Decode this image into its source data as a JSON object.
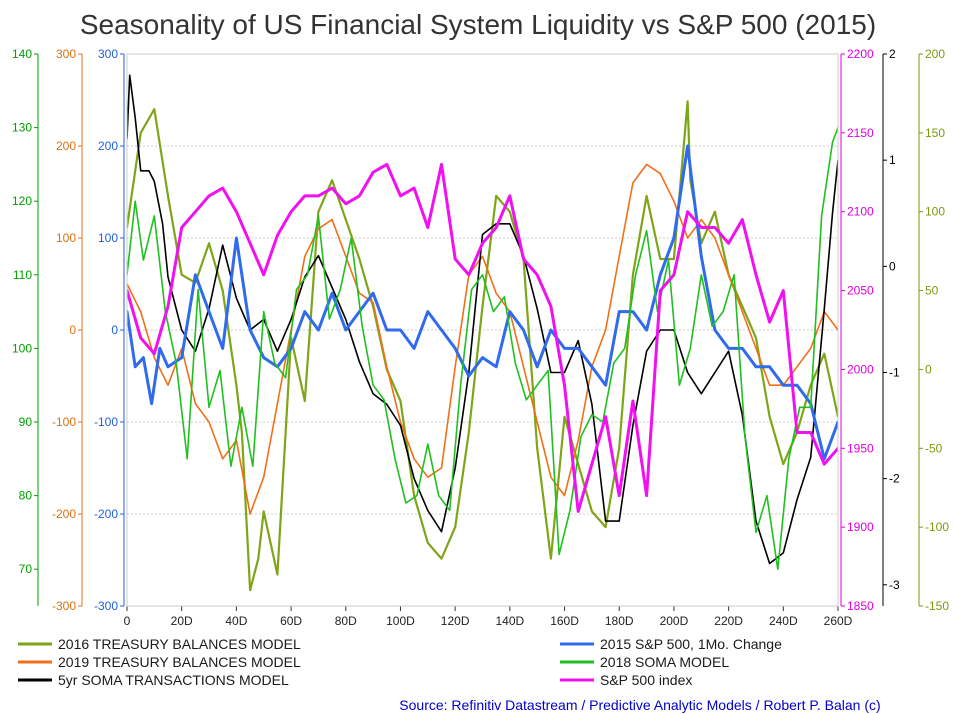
{
  "chart_data": {
    "type": "line",
    "title": "Seasonality of US Financial System Liquidity vs S&P 500 (2015)",
    "source": "Source: Refinitiv Datastream / Predictive Analytic Models / Robert P. Balan (c)",
    "source_color": "#0000cc",
    "grid": true,
    "legend_position": "bottom",
    "x_axis": {
      "range": [
        0,
        260
      ],
      "ticks": [
        "0",
        "20D",
        "40D",
        "60D",
        "80D",
        "100D",
        "120D",
        "140D",
        "160D",
        "180D",
        "200D",
        "220D",
        "240D",
        "260D"
      ]
    },
    "axes": {
      "green_left": {
        "color": "#00a000",
        "range": [
          65,
          140
        ],
        "ticks": [
          "70",
          "80",
          "90",
          "100",
          "110",
          "120",
          "130",
          "140"
        ]
      },
      "orange_left": {
        "color": "#e07010",
        "range": [
          -300,
          300
        ],
        "ticks": [
          "-300",
          "-200",
          "-100",
          "0",
          "100",
          "200",
          "300"
        ]
      },
      "blue_left": {
        "color": "#2060e0",
        "range": [
          -300,
          300
        ],
        "ticks": [
          "-300",
          "-200",
          "-100",
          "0",
          "100",
          "200",
          "300"
        ]
      },
      "magenta_right": {
        "color": "#e000e0",
        "range": [
          1850,
          2200
        ],
        "ticks": [
          "1850",
          "1900",
          "1950",
          "2000",
          "2050",
          "2100",
          "2150",
          "2200"
        ]
      },
      "black_right": {
        "color": "#000000",
        "range": [
          -3.2,
          2.0
        ],
        "ticks": [
          "-3",
          "-2",
          "-1",
          "0",
          "1",
          "2"
        ]
      },
      "olive_right": {
        "color": "#7a9a10",
        "range": [
          -150,
          200
        ],
        "ticks": [
          "-150",
          "-100",
          "-50",
          "0",
          "50",
          "100",
          "150",
          "200"
        ]
      }
    },
    "series": [
      {
        "name": "2016 TREASURY BALANCES MODEL",
        "axis": "olive_right",
        "color": "#7fa418",
        "width": 2.2,
        "x": [
          0,
          5,
          10,
          15,
          20,
          25,
          30,
          35,
          40,
          42,
          45,
          48,
          50,
          55,
          60,
          65,
          70,
          75,
          80,
          85,
          90,
          95,
          100,
          105,
          110,
          115,
          120,
          125,
          130,
          135,
          140,
          145,
          150,
          155,
          160,
          165,
          170,
          175,
          180,
          185,
          190,
          195,
          200,
          205,
          206,
          210,
          215,
          220,
          225,
          230,
          235,
          240,
          245,
          250,
          255,
          260
        ],
        "y": [
          90,
          150,
          165,
          110,
          60,
          55,
          80,
          50,
          -10,
          -40,
          -140,
          -120,
          -90,
          -130,
          20,
          -20,
          100,
          120,
          95,
          70,
          40,
          0,
          -20,
          -80,
          -110,
          -120,
          -100,
          -40,
          40,
          110,
          100,
          70,
          -50,
          -120,
          -30,
          -60,
          -90,
          -100,
          -50,
          60,
          110,
          70,
          70,
          170,
          120,
          80,
          100,
          60,
          40,
          20,
          -30,
          -60,
          -40,
          -10,
          10,
          -30
        ]
      },
      {
        "name": "2019 TREASURY BALANCES MODEL",
        "axis": "orange_left",
        "color": "#f07018",
        "width": 1.6,
        "x": [
          0,
          5,
          10,
          15,
          20,
          25,
          30,
          35,
          40,
          45,
          50,
          55,
          60,
          65,
          70,
          75,
          80,
          85,
          90,
          95,
          100,
          105,
          110,
          115,
          120,
          125,
          130,
          135,
          140,
          145,
          150,
          155,
          160,
          165,
          170,
          175,
          180,
          185,
          190,
          195,
          200,
          205,
          210,
          215,
          220,
          225,
          230,
          235,
          240,
          245,
          250,
          255,
          260
        ],
        "y": [
          50,
          20,
          -30,
          -60,
          -20,
          -80,
          -100,
          -140,
          -120,
          -200,
          -160,
          -80,
          0,
          80,
          110,
          120,
          80,
          40,
          30,
          -40,
          -100,
          -140,
          -160,
          -150,
          -40,
          60,
          80,
          40,
          20,
          -40,
          -100,
          -160,
          -180,
          -120,
          -40,
          0,
          80,
          160,
          180,
          170,
          140,
          100,
          120,
          100,
          60,
          20,
          -20,
          -60,
          -60,
          -40,
          -20,
          20,
          0
        ]
      },
      {
        "name": "5yr SOMA TRANSACTIONS MODEL",
        "axis": "black_right",
        "color": "#000000",
        "width": 1.6,
        "x": [
          0,
          1,
          3,
          5,
          8,
          10,
          13,
          15,
          18,
          20,
          25,
          30,
          35,
          40,
          45,
          50,
          55,
          60,
          65,
          70,
          75,
          80,
          85,
          90,
          95,
          100,
          105,
          110,
          115,
          120,
          125,
          130,
          135,
          140,
          145,
          150,
          155,
          160,
          165,
          170,
          175,
          180,
          185,
          190,
          195,
          200,
          205,
          210,
          215,
          220,
          225,
          230,
          235,
          240,
          245,
          250,
          255,
          258,
          260
        ],
        "y": [
          1.2,
          1.8,
          1.4,
          0.9,
          0.9,
          0.8,
          0.4,
          -0.1,
          -0.4,
          -0.6,
          -0.8,
          -0.4,
          0.2,
          -0.3,
          -0.6,
          -0.5,
          -0.8,
          -0.5,
          -0.1,
          0.1,
          -0.2,
          -0.5,
          -0.9,
          -1.2,
          -1.3,
          -1.5,
          -2.0,
          -2.3,
          -2.5,
          -1.9,
          -1.0,
          0.3,
          0.4,
          0.4,
          0.1,
          -0.4,
          -1.0,
          -1.0,
          -0.7,
          -1.3,
          -2.4,
          -2.4,
          -1.5,
          -0.8,
          -0.6,
          -0.6,
          -1.0,
          -1.2,
          -1.0,
          -0.8,
          -1.4,
          -2.4,
          -2.8,
          -2.7,
          -2.2,
          -1.8,
          -0.4,
          0.5,
          1.0
        ]
      },
      {
        "name": "2015 S&P 500, 1Mo. Change",
        "axis": "blue_left",
        "color": "#2f6bec",
        "width": 3,
        "x": [
          0,
          3,
          6,
          9,
          12,
          15,
          20,
          25,
          30,
          35,
          40,
          45,
          50,
          55,
          60,
          65,
          70,
          75,
          80,
          85,
          90,
          95,
          100,
          105,
          110,
          115,
          120,
          125,
          130,
          135,
          140,
          145,
          150,
          155,
          160,
          165,
          170,
          175,
          180,
          185,
          190,
          195,
          200,
          205,
          210,
          215,
          220,
          225,
          230,
          235,
          240,
          245,
          250,
          255,
          260
        ],
        "y": [
          20,
          -40,
          -30,
          -80,
          -20,
          -40,
          -30,
          60,
          20,
          -20,
          100,
          0,
          -30,
          -40,
          -20,
          20,
          0,
          40,
          0,
          20,
          40,
          0,
          0,
          -20,
          20,
          0,
          -20,
          -50,
          -30,
          -40,
          20,
          0,
          -40,
          0,
          -20,
          -20,
          -40,
          -60,
          20,
          20,
          0,
          60,
          100,
          200,
          80,
          0,
          -20,
          -20,
          -40,
          -40,
          -60,
          -60,
          -80,
          -140,
          -100
        ]
      },
      {
        "name": "2018 SOMA MODEL",
        "axis": "green_left",
        "color": "#20c020",
        "width": 1.6,
        "x": [
          0,
          3,
          6,
          10,
          14,
          18,
          22,
          26,
          30,
          34,
          38,
          42,
          46,
          50,
          54,
          58,
          62,
          66,
          70,
          74,
          78,
          82,
          86,
          90,
          94,
          98,
          102,
          106,
          110,
          114,
          118,
          122,
          126,
          130,
          134,
          138,
          142,
          146,
          150,
          154,
          158,
          162,
          166,
          170,
          174,
          178,
          182,
          186,
          190,
          194,
          198,
          202,
          206,
          210,
          214,
          218,
          222,
          226,
          230,
          234,
          238,
          242,
          246,
          250,
          254,
          258,
          260
        ],
        "y": [
          110,
          120,
          112,
          118,
          105,
          98,
          85,
          108,
          92,
          97,
          84,
          92,
          84,
          105,
          98,
          96,
          108,
          110,
          118,
          104,
          108,
          115,
          103,
          95,
          93,
          85,
          79,
          80,
          87,
          80,
          78,
          95,
          108,
          110,
          105,
          107,
          98,
          93,
          95,
          97,
          72,
          78,
          88,
          91,
          90,
          98,
          100,
          110,
          116,
          105,
          112,
          95,
          100,
          110,
          103,
          105,
          110,
          88,
          75,
          80,
          70,
          85,
          92,
          92,
          118,
          128,
          130
        ]
      },
      {
        "name": "S&P 500 index",
        "axis": "magenta_right",
        "color": "#f010f0",
        "width": 3,
        "x": [
          0,
          5,
          10,
          15,
          20,
          25,
          30,
          35,
          40,
          45,
          50,
          55,
          60,
          65,
          70,
          75,
          80,
          85,
          90,
          95,
          100,
          105,
          110,
          115,
          120,
          125,
          130,
          135,
          140,
          145,
          150,
          155,
          160,
          165,
          170,
          175,
          180,
          185,
          190,
          195,
          200,
          205,
          210,
          215,
          220,
          225,
          230,
          235,
          240,
          245,
          250,
          255,
          260
        ],
        "y": [
          2050,
          2020,
          2010,
          2040,
          2090,
          2100,
          2110,
          2115,
          2100,
          2080,
          2060,
          2085,
          2100,
          2110,
          2110,
          2115,
          2105,
          2110,
          2125,
          2130,
          2110,
          2115,
          2090,
          2130,
          2070,
          2060,
          2080,
          2090,
          2110,
          2070,
          2060,
          2040,
          1990,
          1910,
          1940,
          1970,
          1920,
          1980,
          1920,
          2050,
          2060,
          2100,
          2090,
          2090,
          2080,
          2095,
          2060,
          2030,
          2050,
          1960,
          1960,
          1940,
          1950
        ]
      }
    ]
  }
}
